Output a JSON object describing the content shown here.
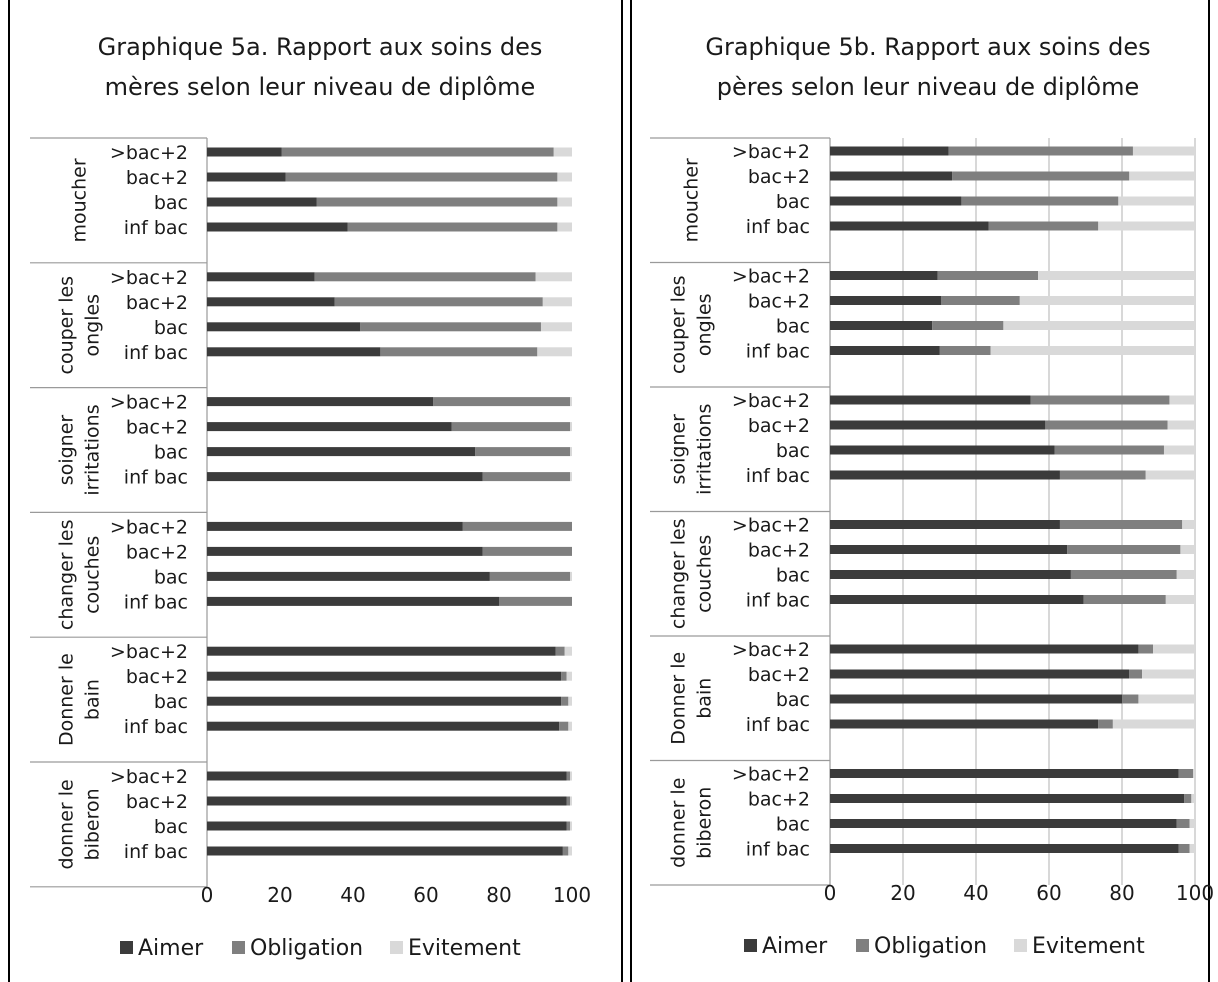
{
  "series_colors": [
    "#3b3b3b",
    "#7f7f7f",
    "#d9d9d9"
  ],
  "chart_data": [
    {
      "type": "bar",
      "orientation": "horizontal",
      "stacked": true,
      "title": "Graphique 5a. Rapport aux soins des mères selon leur niveau de diplôme",
      "title_lines": [
        "Graphique 5a. Rapport aux soins des",
        "mères selon leur niveau de diplôme"
      ],
      "xlim": [
        0,
        100
      ],
      "xticks": [
        "0",
        "20",
        "40",
        "60",
        "80",
        "100"
      ],
      "grid": false,
      "legend": "bottom",
      "series_names": [
        "Aimer",
        "Obligation",
        "Evitement"
      ],
      "groups": [
        {
          "label_lines": [
            "moucher"
          ],
          "rows": [
            {
              "label": ">bac+2",
              "values": [
                20.5,
                74.5,
                5.0
              ]
            },
            {
              "label": "bac+2",
              "values": [
                21.5,
                74.5,
                4.0
              ]
            },
            {
              "label": "bac",
              "values": [
                30.0,
                66.0,
                4.0
              ]
            },
            {
              "label": "inf bac",
              "values": [
                38.5,
                57.5,
                4.0
              ]
            }
          ]
        },
        {
          "label_lines": [
            "couper les",
            "ongles"
          ],
          "rows": [
            {
              "label": ">bac+2",
              "values": [
                29.5,
                60.5,
                10.0
              ]
            },
            {
              "label": "bac+2",
              "values": [
                35.0,
                57.0,
                8.0
              ]
            },
            {
              "label": "bac",
              "values": [
                42.0,
                49.5,
                8.5
              ]
            },
            {
              "label": "inf bac",
              "values": [
                47.5,
                43.0,
                9.5
              ]
            }
          ]
        },
        {
          "label_lines": [
            "soigner",
            "irritations"
          ],
          "rows": [
            {
              "label": ">bac+2",
              "values": [
                62.0,
                37.5,
                0.5
              ]
            },
            {
              "label": "bac+2",
              "values": [
                67.0,
                32.5,
                0.5
              ]
            },
            {
              "label": "bac",
              "values": [
                73.5,
                26.0,
                0.5
              ]
            },
            {
              "label": "inf bac",
              "values": [
                75.5,
                24.0,
                0.5
              ]
            }
          ]
        },
        {
          "label_lines": [
            "changer les",
            "couches"
          ],
          "rows": [
            {
              "label": ">bac+2",
              "values": [
                70.0,
                30.0,
                0.0
              ]
            },
            {
              "label": "bac+2",
              "values": [
                75.5,
                24.5,
                0.0
              ]
            },
            {
              "label": "bac",
              "values": [
                77.5,
                22.0,
                0.5
              ]
            },
            {
              "label": "inf bac",
              "values": [
                80.0,
                20.0,
                0.0
              ]
            }
          ]
        },
        {
          "label_lines": [
            "Donner le",
            "bain"
          ],
          "rows": [
            {
              "label": ">bac+2",
              "values": [
                95.5,
                2.5,
                2.0
              ]
            },
            {
              "label": "bac+2",
              "values": [
                97.0,
                1.5,
                1.5
              ]
            },
            {
              "label": "bac",
              "values": [
                97.0,
                2.0,
                1.0
              ]
            },
            {
              "label": "inf bac",
              "values": [
                96.5,
                2.5,
                1.0
              ]
            }
          ]
        },
        {
          "label_lines": [
            "donner le",
            "biberon"
          ],
          "rows": [
            {
              "label": ">bac+2",
              "values": [
                98.5,
                1.0,
                0.5
              ]
            },
            {
              "label": "bac+2",
              "values": [
                98.5,
                1.0,
                0.5
              ]
            },
            {
              "label": "bac",
              "values": [
                98.5,
                1.0,
                0.5
              ]
            },
            {
              "label": "inf bac",
              "values": [
                97.5,
                1.5,
                1.0
              ]
            }
          ]
        }
      ]
    },
    {
      "type": "bar",
      "orientation": "horizontal",
      "stacked": true,
      "title": "Graphique 5b. Rapport aux soins des pères selon leur niveau de diplôme",
      "title_lines": [
        "Graphique 5b. Rapport aux soins des",
        "pères selon leur niveau de diplôme"
      ],
      "xlim": [
        0,
        100
      ],
      "xticks": [
        "0",
        "20",
        "40",
        "60",
        "80",
        "100"
      ],
      "grid": true,
      "legend": "bottom",
      "series_names": [
        "Aimer",
        "Obligation",
        "Evitement"
      ],
      "groups": [
        {
          "label_lines": [
            "moucher"
          ],
          "rows": [
            {
              "label": ">bac+2",
              "values": [
                32.5,
                50.5,
                17.0
              ]
            },
            {
              "label": "bac+2",
              "values": [
                33.5,
                48.5,
                18.0
              ]
            },
            {
              "label": "bac",
              "values": [
                36.0,
                43.0,
                21.0
              ]
            },
            {
              "label": "inf bac",
              "values": [
                43.5,
                30.0,
                26.5
              ]
            }
          ]
        },
        {
          "label_lines": [
            "couper les",
            "ongles"
          ],
          "rows": [
            {
              "label": ">bac+2",
              "values": [
                29.5,
                27.5,
                43.0
              ]
            },
            {
              "label": "bac+2",
              "values": [
                30.5,
                21.5,
                48.0
              ]
            },
            {
              "label": "bac",
              "values": [
                28.0,
                19.5,
                52.5
              ]
            },
            {
              "label": "inf bac",
              "values": [
                30.0,
                14.0,
                56.0
              ]
            }
          ]
        },
        {
          "label_lines": [
            "soigner",
            "irritations"
          ],
          "rows": [
            {
              "label": ">bac+2",
              "values": [
                55.0,
                38.0,
                7.0
              ]
            },
            {
              "label": "bac+2",
              "values": [
                59.0,
                33.5,
                7.5
              ]
            },
            {
              "label": "bac",
              "values": [
                61.5,
                30.0,
                8.5
              ]
            },
            {
              "label": "inf bac",
              "values": [
                63.0,
                23.5,
                13.5
              ]
            }
          ]
        },
        {
          "label_lines": [
            "changer les",
            "couches"
          ],
          "rows": [
            {
              "label": ">bac+2",
              "values": [
                63.0,
                33.5,
                3.5
              ]
            },
            {
              "label": "bac+2",
              "values": [
                65.0,
                31.0,
                4.0
              ]
            },
            {
              "label": "bac",
              "values": [
                66.0,
                29.0,
                5.0
              ]
            },
            {
              "label": "inf bac",
              "values": [
                69.5,
                22.5,
                8.0
              ]
            }
          ]
        },
        {
          "label_lines": [
            "Donner le",
            "bain"
          ],
          "rows": [
            {
              "label": ">bac+2",
              "values": [
                84.5,
                4.0,
                11.5
              ]
            },
            {
              "label": "bac+2",
              "values": [
                82.0,
                3.5,
                14.5
              ]
            },
            {
              "label": "bac",
              "values": [
                80.0,
                4.5,
                15.5
              ]
            },
            {
              "label": "inf bac",
              "values": [
                73.5,
                4.0,
                22.5
              ]
            }
          ]
        },
        {
          "label_lines": [
            "donner le",
            "biberon"
          ],
          "rows": [
            {
              "label": ">bac+2",
              "values": [
                95.5,
                4.0,
                0.5
              ]
            },
            {
              "label": "bac+2",
              "values": [
                97.0,
                2.0,
                1.0
              ]
            },
            {
              "label": "bac",
              "values": [
                95.0,
                3.5,
                1.5
              ]
            },
            {
              "label": "inf bac",
              "values": [
                95.5,
                3.0,
                1.5
              ]
            }
          ]
        }
      ]
    }
  ]
}
